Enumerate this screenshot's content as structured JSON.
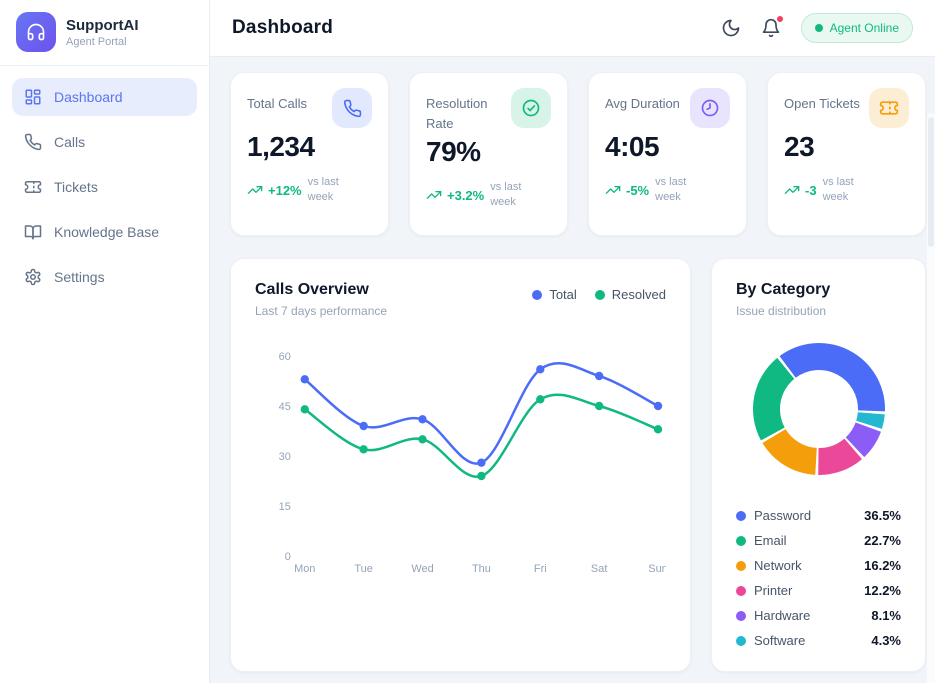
{
  "brand": {
    "name": "SupportAI",
    "subtitle": "Agent Portal"
  },
  "sidebar": {
    "items": [
      {
        "label": "Dashboard",
        "active": true
      },
      {
        "label": "Calls",
        "active": false
      },
      {
        "label": "Tickets",
        "active": false
      },
      {
        "label": "Knowledge Base",
        "active": false
      },
      {
        "label": "Settings",
        "active": false
      }
    ]
  },
  "header": {
    "title": "Dashboard",
    "status_badge": "Agent Online"
  },
  "stats": [
    {
      "label": "Total Calls",
      "value": "1,234",
      "trend": "+12%",
      "note": "vs last week",
      "icon": "phone-icon",
      "icon_color": "#4a6cf7",
      "icon_bg": "#e2e9fe"
    },
    {
      "label": "Resolution Rate",
      "value": "79%",
      "trend": "+3.2%",
      "note": "vs last week",
      "icon": "check-circle-icon",
      "icon_color": "#10b981",
      "icon_bg": "#d8f3e8"
    },
    {
      "label": "Avg Duration",
      "value": "4:05",
      "trend": "-5%",
      "note": "vs last week",
      "icon": "clock-icon",
      "icon_color": "#7c5cfa",
      "icon_bg": "#e9e4fd"
    },
    {
      "label": "Open Tickets",
      "value": "23",
      "trend": "-3",
      "note": "vs last week",
      "icon": "ticket-icon",
      "icon_color": "#f59e0b",
      "icon_bg": "#fcedd5"
    }
  ],
  "colors": {
    "accent": "#4a6cf7",
    "positive": "#10b981",
    "notification": "#f43f5e",
    "active_nav_bg": "#e8edfd",
    "page_bg": "#f1f5f9"
  },
  "chart_data": [
    {
      "type": "line",
      "title": "Calls Overview",
      "subtitle": "Last 7 days performance",
      "x": [
        "Mon",
        "Tue",
        "Wed",
        "Thu",
        "Fri",
        "Sat",
        "Sun"
      ],
      "series": [
        {
          "name": "Total",
          "color": "#4a6cf7",
          "values": [
            53,
            39,
            41,
            28,
            56,
            54,
            45
          ]
        },
        {
          "name": "Resolved",
          "color": "#10b981",
          "values": [
            44,
            32,
            35,
            24,
            47,
            45,
            38
          ]
        }
      ],
      "ylim": [
        0,
        60
      ],
      "yticks": [
        0,
        15,
        30,
        45,
        60
      ],
      "grid": false,
      "legend_position": "top-right"
    },
    {
      "type": "pie",
      "title": "By Category",
      "subtitle": "Issue distribution",
      "donut": true,
      "start_angle": -38,
      "draw_order": [
        "Password",
        "Software",
        "Hardware",
        "Printer",
        "Network",
        "Email"
      ],
      "slices": [
        {
          "label": "Password",
          "pct": 36.5,
          "pct_label": "36.5%",
          "color": "#4a6cf7"
        },
        {
          "label": "Email",
          "pct": 22.7,
          "pct_label": "22.7%",
          "color": "#10b981"
        },
        {
          "label": "Network",
          "pct": 16.2,
          "pct_label": "16.2%",
          "color": "#f59e0b"
        },
        {
          "label": "Printer",
          "pct": 12.2,
          "pct_label": "12.2%",
          "color": "#ec4899"
        },
        {
          "label": "Hardware",
          "pct": 8.1,
          "pct_label": "8.1%",
          "color": "#8b5cf6"
        },
        {
          "label": "Software",
          "pct": 4.3,
          "pct_label": "4.3%",
          "color": "#22b8cf"
        }
      ]
    }
  ]
}
